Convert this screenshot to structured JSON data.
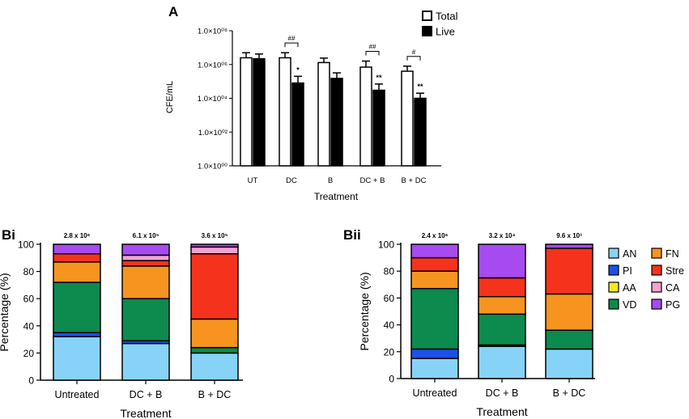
{
  "panel_labels": {
    "a": "A",
    "bi": "Bi",
    "bii": "Bii"
  },
  "legend": [
    {
      "key": "AN",
      "color": "#87d3f8"
    },
    {
      "key": "PI",
      "color": "#1a52e8"
    },
    {
      "key": "AA",
      "color": "#f5ea22"
    },
    {
      "key": "VD",
      "color": "#0d8a4e"
    },
    {
      "key": "FN",
      "color": "#f79420"
    },
    {
      "key": "Stre",
      "color": "#f5331d"
    },
    {
      "key": "CA",
      "color": "#f3a3d0"
    },
    {
      "key": "PG",
      "color": "#a64bf0"
    }
  ],
  "chart_data": [
    {
      "id": "A",
      "type": "bar",
      "title": "",
      "xlabel": "Treatment",
      "ylabel": "CFE/mL",
      "yscale": "log10",
      "ylim": [
        1,
        100000000
      ],
      "yticks": [
        "1.0×10⁰⁰",
        "1.0×10⁰²",
        "1.0×10⁰⁴",
        "1.0×10⁰⁶",
        "1.0×10⁰⁸"
      ],
      "categories": [
        "UT",
        "DC",
        "B",
        "DC + B",
        "B + DC"
      ],
      "series": [
        {
          "name": "Total",
          "color": "#ffffff",
          "values": [
            2500000,
            2500000,
            1300000,
            700000,
            400000
          ],
          "errors_upper": [
            5000000,
            5000000,
            2400000,
            1600000,
            800000
          ]
        },
        {
          "name": "Live",
          "color": "#000000",
          "values": [
            2200000,
            80000,
            150000,
            30000,
            10000
          ],
          "errors_upper": [
            4200000,
            200000,
            320000,
            70000,
            20000
          ]
        }
      ],
      "live_markers": [
        "",
        "*",
        "",
        "**",
        "**"
      ],
      "brackets": [
        {
          "category": "DC",
          "label": "##"
        },
        {
          "category": "DC + B",
          "label": "##"
        },
        {
          "category": "B + DC",
          "label": "#"
        }
      ]
    },
    {
      "id": "Bi",
      "type": "stacked_bar",
      "xlabel": "Treatment",
      "ylabel": "Percentage (%)",
      "ylim": [
        0,
        100
      ],
      "yticks": [
        "0",
        "20",
        "40",
        "60",
        "80",
        "100"
      ],
      "categories": [
        "Untreated",
        "DC + B",
        "B + DC"
      ],
      "totals": [
        "2.8 x 10⁶",
        "6.1 x 10⁵",
        "3.6 x 10⁵"
      ],
      "series": [
        {
          "name": "AN",
          "values": [
            32,
            27,
            20
          ]
        },
        {
          "name": "PI",
          "values": [
            3,
            2,
            0
          ]
        },
        {
          "name": "AA",
          "values": [
            0,
            0,
            0
          ]
        },
        {
          "name": "VD",
          "values": [
            37,
            31,
            4
          ]
        },
        {
          "name": "FN",
          "values": [
            15,
            24,
            21
          ]
        },
        {
          "name": "Stre",
          "values": [
            6,
            4,
            48
          ]
        },
        {
          "name": "CA",
          "values": [
            0,
            4,
            5
          ]
        },
        {
          "name": "PG",
          "values": [
            7,
            8,
            2
          ]
        }
      ]
    },
    {
      "id": "Bii",
      "type": "stacked_bar",
      "xlabel": "Treatment",
      "ylabel": "Percentage (%)",
      "ylim": [
        0,
        100
      ],
      "yticks": [
        "0",
        "20",
        "40",
        "60",
        "80",
        "100"
      ],
      "categories": [
        "Untreated",
        "DC + B",
        "B + DC"
      ],
      "totals": [
        "2.4 x 10⁶",
        "3.2 x 10⁴",
        "9.6 x 10³"
      ],
      "series": [
        {
          "name": "AN",
          "values": [
            15,
            24,
            22
          ]
        },
        {
          "name": "PI",
          "values": [
            7,
            1,
            0
          ]
        },
        {
          "name": "AA",
          "values": [
            0,
            0,
            0
          ]
        },
        {
          "name": "VD",
          "values": [
            45,
            23,
            14
          ]
        },
        {
          "name": "FN",
          "values": [
            13,
            13,
            27
          ]
        },
        {
          "name": "Stre",
          "values": [
            10,
            14,
            34
          ]
        },
        {
          "name": "CA",
          "values": [
            0,
            0,
            0
          ]
        },
        {
          "name": "PG",
          "values": [
            10,
            25,
            3
          ]
        }
      ]
    }
  ]
}
